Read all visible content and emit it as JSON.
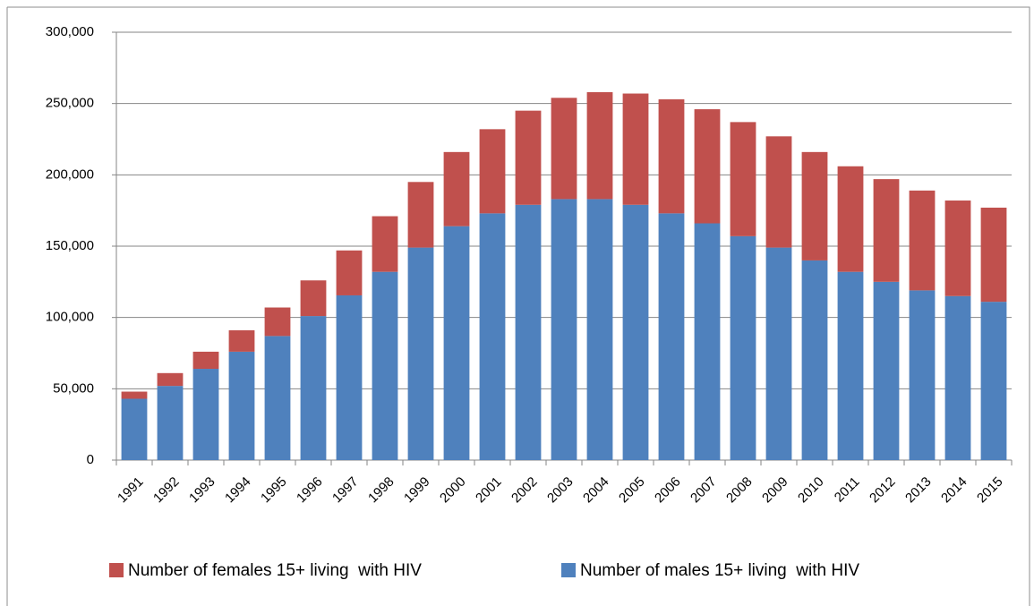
{
  "chart_data": {
    "type": "stacked_bar",
    "categories": [
      "1991",
      "1992",
      "1993",
      "1994",
      "1995",
      "1996",
      "1997",
      "1998",
      "1999",
      "2000",
      "2001",
      "2002",
      "2003",
      "2004",
      "2005",
      "2006",
      "2007",
      "2008",
      "2009",
      "2010",
      "2011",
      "2012",
      "2013",
      "2014",
      "2015"
    ],
    "series": [
      {
        "name": "Number of females 15+ living  with HIV",
        "color": "#c0504d",
        "values": [
          5000,
          9000,
          12000,
          15000,
          20000,
          25000,
          31500,
          39000,
          46000,
          52000,
          59000,
          66000,
          71000,
          75000,
          78000,
          80000,
          80000,
          80000,
          78000,
          76000,
          74000,
          72000,
          70000,
          67000,
          66000
        ]
      },
      {
        "name": "Number of males 15+ living  with HIV",
        "color": "#4f81bd",
        "values": [
          43000,
          52000,
          64000,
          76000,
          87000,
          101000,
          115500,
          132000,
          149000,
          164000,
          173000,
          179000,
          183000,
          183000,
          179000,
          173000,
          166000,
          157000,
          149000,
          140000,
          132000,
          125000,
          119000,
          115000,
          111000
        ]
      }
    ],
    "ylim": [
      0,
      300000
    ],
    "yticks": [
      0,
      {
        "value": 50000,
        "label": "50,000"
      },
      {
        "value": 100000,
        "label": "100,000"
      },
      {
        "value": 150000,
        "label": "150,000"
      },
      {
        "value": 200000,
        "label": "200,000"
      },
      {
        "value": 250000,
        "label": "250,000"
      },
      {
        "value": 300000,
        "label": "300,000"
      }
    ],
    "grid": true
  }
}
